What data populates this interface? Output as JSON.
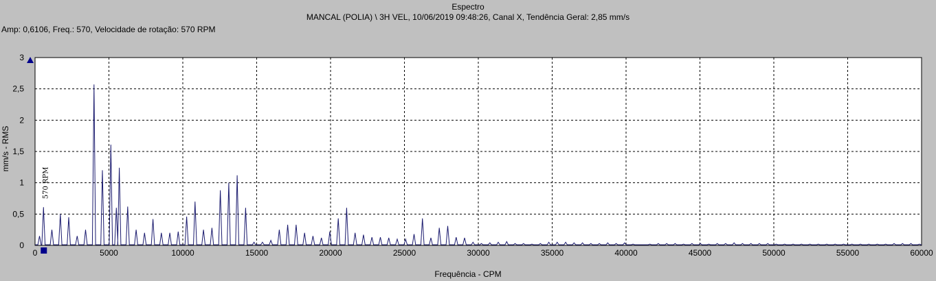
{
  "header": {
    "title": "Espectro",
    "subtitle": "MANCAL (POLIA) \\ 3H VEL, 10/06/2019 09:48:26, Canal X, Tendência Geral: 2,85 mm/s",
    "readout": "Amp: 0,6106, Freq.: 570, Velocidade de rotação: 570 RPM"
  },
  "chart_data": {
    "type": "line",
    "title": "Espectro",
    "xlabel": "Frequência - CPM",
    "ylabel": "mm/s - RMS",
    "xlim": [
      0,
      60000
    ],
    "ylim": [
      0,
      3
    ],
    "x_ticks": [
      0,
      5000,
      10000,
      15000,
      20000,
      25000,
      30000,
      35000,
      40000,
      45000,
      50000,
      55000,
      60000
    ],
    "x_tick_labels": [
      "0",
      "5000",
      "10000",
      "15000",
      "20000",
      "25000",
      "30000",
      "35000",
      "40000",
      "45000",
      "50000",
      "55000",
      "60000"
    ],
    "y_ticks": [
      0,
      0.5,
      1,
      1.5,
      2,
      2.5,
      3
    ],
    "y_tick_labels": [
      "0",
      "0,5",
      "1",
      "1,5",
      "2",
      "2,5",
      "3"
    ],
    "grid": true,
    "line_color": "#1a1a6e",
    "marker_color": "#00008b",
    "annotation": {
      "text": "570 RPM",
      "x": 570,
      "y": 0.72
    },
    "cursor": {
      "x": 570,
      "amp": 0.6106
    },
    "peaks": [
      [
        300,
        0.15
      ],
      [
        570,
        0.61
      ],
      [
        1140,
        0.25
      ],
      [
        1710,
        0.5
      ],
      [
        2280,
        0.45
      ],
      [
        2850,
        0.15
      ],
      [
        3420,
        0.25
      ],
      [
        3990,
        2.57
      ],
      [
        4560,
        1.2
      ],
      [
        5130,
        1.61
      ],
      [
        5500,
        0.6
      ],
      [
        5700,
        1.24
      ],
      [
        6270,
        0.62
      ],
      [
        6840,
        0.25
      ],
      [
        7410,
        0.2
      ],
      [
        7980,
        0.42
      ],
      [
        8550,
        0.2
      ],
      [
        9120,
        0.2
      ],
      [
        9690,
        0.22
      ],
      [
        10260,
        0.46
      ],
      [
        10830,
        0.7
      ],
      [
        11400,
        0.25
      ],
      [
        11970,
        0.28
      ],
      [
        12540,
        0.88
      ],
      [
        13110,
        1.0
      ],
      [
        13680,
        1.12
      ],
      [
        14250,
        0.6
      ],
      [
        14820,
        0.05
      ],
      [
        15390,
        0.05
      ],
      [
        15960,
        0.08
      ],
      [
        16530,
        0.25
      ],
      [
        17100,
        0.33
      ],
      [
        17670,
        0.33
      ],
      [
        18240,
        0.2
      ],
      [
        18810,
        0.15
      ],
      [
        19380,
        0.12
      ],
      [
        19950,
        0.22
      ],
      [
        20520,
        0.43
      ],
      [
        21090,
        0.6
      ],
      [
        21660,
        0.2
      ],
      [
        22230,
        0.17
      ],
      [
        22800,
        0.13
      ],
      [
        23370,
        0.13
      ],
      [
        23940,
        0.12
      ],
      [
        24510,
        0.1
      ],
      [
        25080,
        0.1
      ],
      [
        25650,
        0.18
      ],
      [
        26220,
        0.43
      ],
      [
        26790,
        0.12
      ],
      [
        27360,
        0.28
      ],
      [
        27930,
        0.31
      ],
      [
        28500,
        0.13
      ],
      [
        29070,
        0.12
      ],
      [
        29640,
        0.05
      ],
      [
        30210,
        0.03
      ],
      [
        30780,
        0.04
      ],
      [
        31350,
        0.05
      ],
      [
        31920,
        0.06
      ],
      [
        32490,
        0.03
      ],
      [
        33060,
        0.03
      ],
      [
        33630,
        0.02
      ],
      [
        34200,
        0.03
      ],
      [
        34770,
        0.05
      ],
      [
        35340,
        0.05
      ],
      [
        35910,
        0.05
      ],
      [
        36480,
        0.04
      ],
      [
        37050,
        0.04
      ],
      [
        37620,
        0.03
      ],
      [
        38190,
        0.03
      ],
      [
        38760,
        0.04
      ],
      [
        39330,
        0.03
      ],
      [
        39900,
        0.04
      ],
      [
        40470,
        0.02
      ],
      [
        41610,
        0.02
      ],
      [
        42180,
        0.03
      ],
      [
        42750,
        0.03
      ],
      [
        43320,
        0.03
      ],
      [
        43890,
        0.02
      ],
      [
        44460,
        0.03
      ],
      [
        45030,
        0.03
      ],
      [
        45600,
        0.02
      ],
      [
        46170,
        0.03
      ],
      [
        46740,
        0.03
      ],
      [
        47310,
        0.04
      ],
      [
        47880,
        0.03
      ],
      [
        48450,
        0.03
      ],
      [
        49020,
        0.03
      ],
      [
        49590,
        0.03
      ],
      [
        50160,
        0.02
      ],
      [
        50730,
        0.02
      ],
      [
        51300,
        0.02
      ],
      [
        51870,
        0.02
      ],
      [
        52440,
        0.02
      ],
      [
        53010,
        0.02
      ],
      [
        53580,
        0.02
      ],
      [
        54150,
        0.02
      ],
      [
        54720,
        0.02
      ],
      [
        55290,
        0.02
      ],
      [
        55860,
        0.02
      ],
      [
        56430,
        0.02
      ],
      [
        57000,
        0.02
      ],
      [
        57570,
        0.02
      ],
      [
        58140,
        0.03
      ],
      [
        58710,
        0.03
      ],
      [
        59280,
        0.03
      ],
      [
        59850,
        0.02
      ]
    ]
  }
}
